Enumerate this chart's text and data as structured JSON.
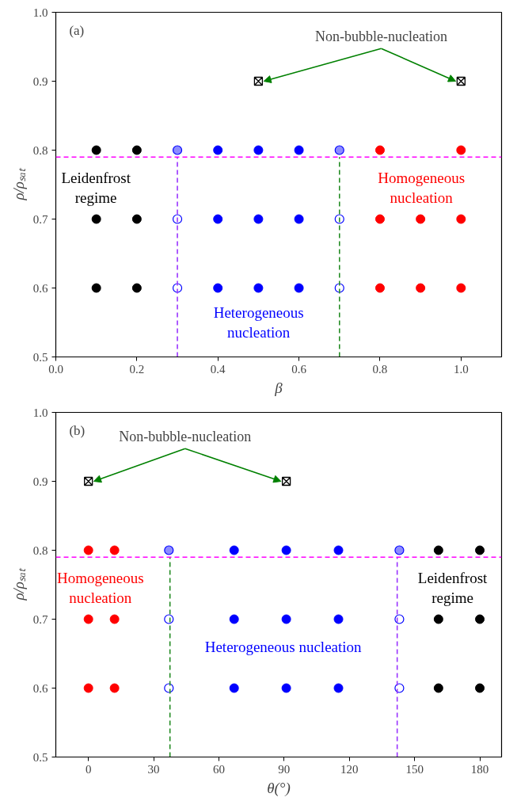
{
  "chart_data": [
    {
      "type": "scatter",
      "title": "(a)",
      "xlabel": "β",
      "ylabel": "ρ/ρₛₐₜ",
      "xlim": [
        0,
        1.1
      ],
      "ylim": [
        0.5,
        1.0
      ],
      "xticks": [
        {
          "value": 0,
          "label": "0.0"
        },
        0.2,
        0.4,
        0.6,
        0.8,
        {
          "value": 1,
          "label": "1.0"
        }
      ],
      "yticks": [
        0.5,
        0.6,
        0.7,
        0.8,
        0.9,
        {
          "value": 1,
          "label": "1.0"
        }
      ],
      "grid": false,
      "legend": false,
      "annotations": [
        {
          "text": "Non-bubble-nucleation",
          "x": 1.0,
          "y": 0.9
        }
      ],
      "ref_lines": [
        {
          "axis": "y",
          "value": 0.79,
          "color": "#ff00ff",
          "line_style": "dashed"
        }
      ],
      "series": [
        {
          "name": "Leidenfrost regime",
          "color": "#000000",
          "marker": "circle",
          "x": [
            0.1,
            0.2,
            0.1,
            0.2,
            0.1,
            0.2
          ],
          "values": [
            0.8,
            0.8,
            0.7,
            0.7,
            0.6,
            0.6
          ]
        },
        {
          "name": "Heterogeneous nucleation",
          "color": "#0000ff",
          "marker": "circle",
          "x": [
            0.4,
            0.5,
            0.6,
            0.4,
            0.5,
            0.6,
            0.4,
            0.5,
            0.6
          ],
          "values": [
            0.8,
            0.8,
            0.8,
            0.7,
            0.7,
            0.7,
            0.6,
            0.6,
            0.6
          ]
        },
        {
          "name": "Homogeneous nucleation",
          "color": "#ff0000",
          "marker": "circle",
          "x": [
            0.8,
            1.0,
            0.8,
            0.9,
            1.0,
            0.8,
            0.9,
            1.0
          ],
          "values": [
            0.8,
            0.8,
            0.7,
            0.7,
            0.7,
            0.6,
            0.6,
            0.6
          ]
        },
        {
          "color": "#0000ff",
          "marker": "circle_half",
          "x": [
            0.3,
            0.7
          ],
          "values": [
            0.8,
            0.8
          ]
        },
        {
          "color": "#0000ff",
          "marker": "circle_open",
          "x": [
            0.3,
            0.7,
            0.3,
            0.7
          ],
          "values": [
            0.7,
            0.7,
            0.6,
            0.6
          ]
        },
        {
          "color": "#000000",
          "marker": "cross",
          "x": [
            0.5,
            1.0
          ],
          "values": [
            0.9,
            0.9
          ]
        },
        {
          "type": "line",
          "color": "#9933ff",
          "line_style": "dashed",
          "marker": "none",
          "x": [
            0.3,
            0.3
          ],
          "values": [
            0.5,
            0.79
          ]
        },
        {
          "type": "line",
          "color": "#228b22",
          "line_style": "dashed",
          "marker": "none",
          "x": [
            0.7,
            0.7
          ],
          "values": [
            0.5,
            0.79
          ]
        }
      ]
    },
    {
      "type": "scatter",
      "title": "(b)",
      "xlabel": "θ(°)",
      "ylabel": "ρ/ρₛₐₜ",
      "xlim": [
        -15,
        190
      ],
      "ylim": [
        0.5,
        1.0
      ],
      "xticks": [
        0,
        30,
        60,
        90,
        120,
        150,
        180
      ],
      "yticks": [
        0.5,
        0.6,
        0.7,
        0.8,
        0.9,
        {
          "value": 1,
          "label": "1.0"
        }
      ],
      "grid": false,
      "legend": false,
      "annotations": [
        {
          "text": "Non-bubble-nucleation",
          "x": 91,
          "y": 0.9
        }
      ],
      "ref_lines": [
        {
          "axis": "y",
          "value": 0.79,
          "color": "#ff00ff",
          "line_style": "dashed"
        }
      ],
      "series": [
        {
          "name": "Leidenfrost regime",
          "color": "#000000",
          "marker": "circle",
          "x": [
            161,
            180,
            161,
            180,
            161,
            180
          ],
          "values": [
            0.8,
            0.8,
            0.7,
            0.7,
            0.6,
            0.6
          ]
        },
        {
          "name": "Heterogeneous nucleation",
          "color": "#0000ff",
          "marker": "circle",
          "x": [
            67,
            91,
            115,
            67,
            91,
            115,
            67,
            91,
            115
          ],
          "values": [
            0.8,
            0.8,
            0.8,
            0.7,
            0.7,
            0.7,
            0.6,
            0.6,
            0.6
          ]
        },
        {
          "name": "Homogeneous nucleation",
          "color": "#ff0000",
          "marker": "circle",
          "x": [
            0,
            12,
            0,
            12,
            0,
            12
          ],
          "values": [
            0.8,
            0.8,
            0.7,
            0.7,
            0.6,
            0.6
          ]
        },
        {
          "color": "#0000ff",
          "marker": "circle_half",
          "x": [
            37,
            143
          ],
          "values": [
            0.8,
            0.8
          ]
        },
        {
          "color": "#0000ff",
          "marker": "circle_open",
          "x": [
            37,
            143,
            37,
            143
          ],
          "values": [
            0.7,
            0.7,
            0.6,
            0.6
          ]
        },
        {
          "color": "#000000",
          "marker": "cross",
          "x": [
            0,
            91
          ],
          "values": [
            0.9,
            0.9
          ]
        },
        {
          "type": "line",
          "color": "#228b22",
          "line_style": "dashed",
          "marker": "none",
          "x": [
            37.5,
            37.5
          ],
          "values": [
            0.5,
            0.79
          ]
        },
        {
          "type": "line",
          "color": "#9933ff",
          "line_style": "dashed",
          "marker": "none",
          "x": [
            142,
            142
          ],
          "values": [
            0.5,
            0.79
          ]
        }
      ]
    }
  ]
}
